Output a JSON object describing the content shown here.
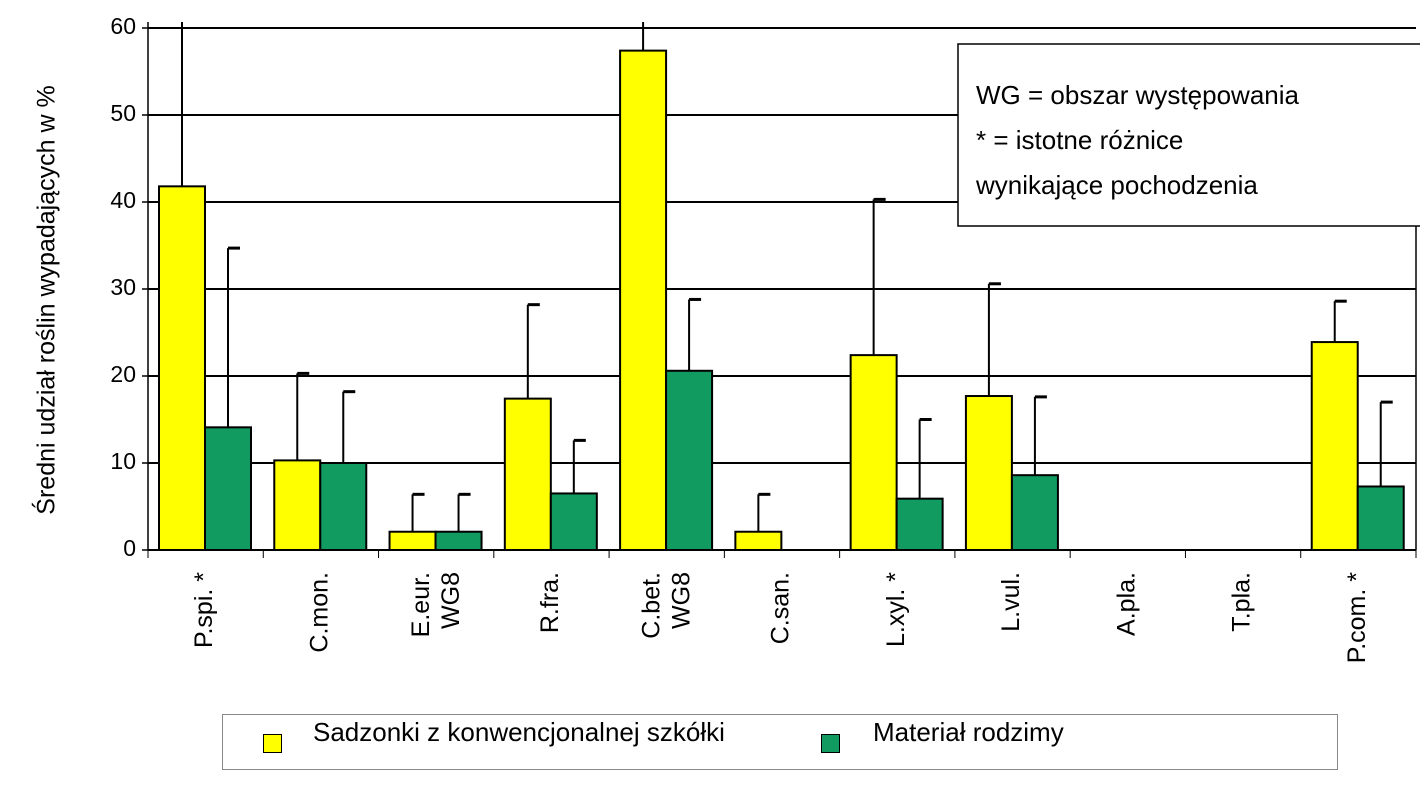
{
  "chart_data": {
    "type": "bar",
    "y_label": "Średni udział roślin wypadających w %",
    "categories": [
      "P.spi. *",
      "C.mon.",
      "E.eur.\nWG8",
      "R.fra.",
      "C.bet.\nWG8",
      "C.san.",
      "L.xyl. *",
      "L.vul.",
      "A.pla.",
      "T.pla.",
      "P.com. *"
    ],
    "series": [
      {
        "name": "Sadzonki z konwencjonalnej szkółki",
        "color": "#ffff00",
        "values": [
          41.8,
          10.3,
          2.1,
          17.4,
          57.4,
          2.1,
          22.4,
          17.7,
          0,
          0,
          23.9
        ],
        "errors": [
          21,
          10,
          4.3,
          10.8,
          3.5,
          4.3,
          17.9,
          12.9,
          0,
          0,
          4.7
        ]
      },
      {
        "name": "Materiał rodzimy",
        "color": "#129b61",
        "values": [
          14.1,
          10.0,
          2.1,
          6.5,
          20.6,
          0,
          5.9,
          8.6,
          0,
          0,
          7.3
        ],
        "errors": [
          20.6,
          8.2,
          4.3,
          6.1,
          8.2,
          0,
          9.1,
          9,
          0,
          0,
          9.7
        ]
      }
    ],
    "ylim": [
      0,
      60
    ],
    "yticks": [
      0,
      10,
      20,
      30,
      40,
      50,
      60
    ],
    "grid": true,
    "legend": "bottom",
    "annotation": [
      "WG = obszar występowania",
      "* = istotne różnice",
      "wynikające  pochodzenia"
    ]
  }
}
